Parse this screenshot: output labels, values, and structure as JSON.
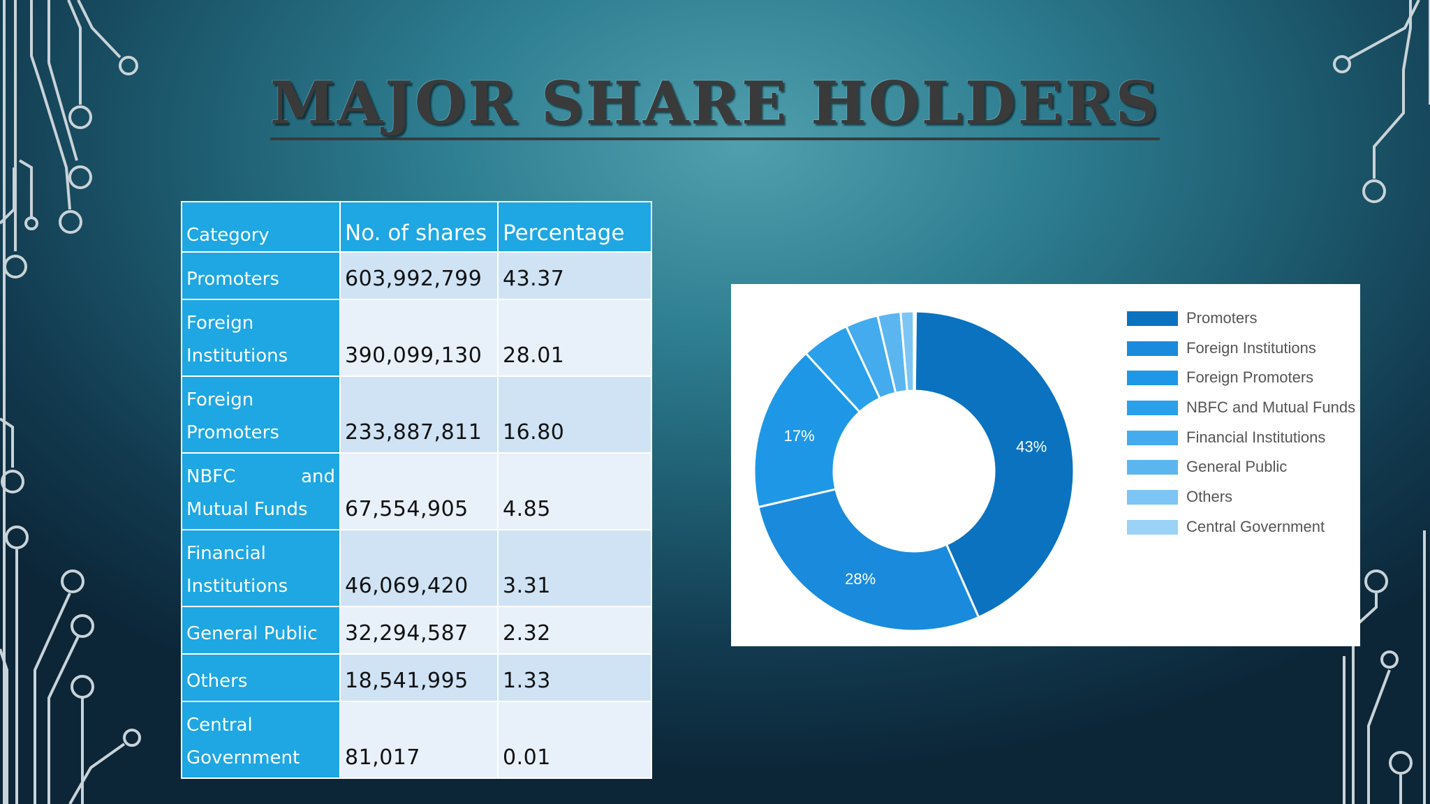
{
  "slide": {
    "title": "MAJOR SHARE HOLDERS"
  },
  "table": {
    "headers": [
      "Category",
      "No. of shares",
      "Percentage"
    ],
    "rows": [
      {
        "category": [
          "Promoters"
        ],
        "shares": "603,992,799",
        "percentage": "43.37"
      },
      {
        "category": [
          "Foreign",
          "Institutions"
        ],
        "shares": "390,099,130",
        "percentage": "28.01"
      },
      {
        "category": [
          "Foreign",
          "Promoters"
        ],
        "shares": "233,887,811",
        "percentage": "16.80"
      },
      {
        "category": [
          "NBFC and",
          "Mutual Funds"
        ],
        "shares": "67,554,905",
        "percentage": "4.85"
      },
      {
        "category": [
          "Financial",
          "Institutions"
        ],
        "shares": "46,069,420",
        "percentage": "3.31"
      },
      {
        "category": [
          "General Public"
        ],
        "shares": "32,294,587",
        "percentage": "2.32"
      },
      {
        "category": [
          "Others"
        ],
        "shares": "18,541,995",
        "percentage": "1.33"
      },
      {
        "category": [
          "Central",
          "Government"
        ],
        "shares": "81,017",
        "percentage": "0.01"
      }
    ]
  },
  "chart_data": {
    "type": "pie",
    "donut": true,
    "categories": [
      "Promoters",
      "Foreign Institutions",
      "Foreign Promoters",
      "NBFC and Mutual Funds",
      "Financial Institutions",
      "General Public",
      "Others",
      "Central Government"
    ],
    "values": [
      43.37,
      28.01,
      16.8,
      4.85,
      3.31,
      2.32,
      1.33,
      0.01
    ],
    "data_labels": [
      "43%",
      "28%",
      "17%",
      "",
      "",
      "",
      "",
      ""
    ],
    "colors": [
      "#0b72bf",
      "#1a8bdc",
      "#1e98e6",
      "#2aa0ea",
      "#44abee",
      "#5bb6f0",
      "#7cc5f4",
      "#9ad3f6"
    ],
    "legend_position": "right",
    "start": "top",
    "direction": "clockwise"
  }
}
